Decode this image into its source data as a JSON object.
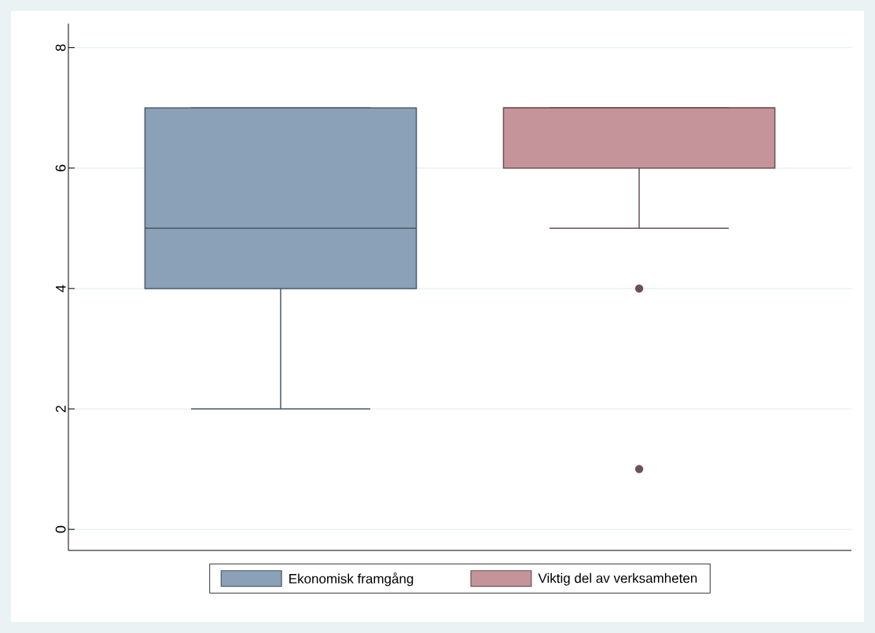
{
  "chart_data": {
    "type": "box",
    "categories": [
      null
    ],
    "series": [
      {
        "name": "Ekonomisk framgång",
        "color": "#8ba1b7",
        "boxes": [
          {
            "low": 2,
            "q1": 4,
            "median": 5,
            "q3": 7,
            "high": 7
          }
        ]
      },
      {
        "name": "Viktig del av verksamheten",
        "color": "#c4949a",
        "boxes": [
          {
            "low": 5,
            "q1": 6,
            "median": 7,
            "q3": 7,
            "high": 7,
            "outliers": [
              4,
              1
            ]
          }
        ]
      }
    ],
    "ylim": [
      -0.35,
      8.4
    ],
    "yticks": [
      0,
      2,
      4,
      6,
      8
    ],
    "grid": "y",
    "legend": "bottom"
  }
}
